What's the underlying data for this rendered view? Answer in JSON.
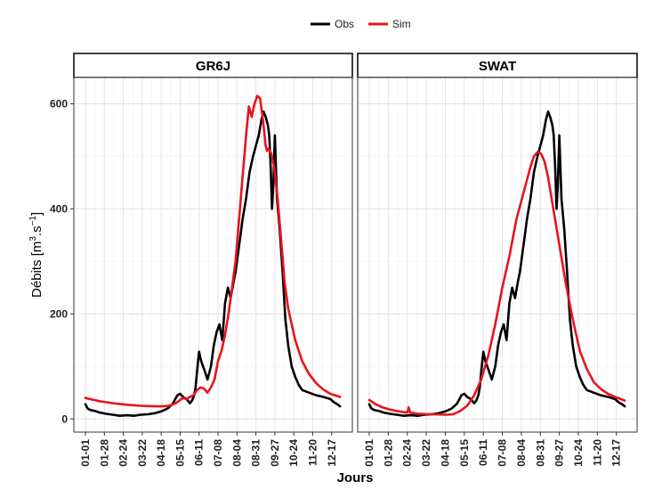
{
  "chart_data": {
    "type": "line",
    "legend": {
      "position": "top",
      "items": [
        {
          "name": "Obs",
          "color": "#000000"
        },
        {
          "name": "Sim",
          "color": "#e8141a"
        }
      ]
    },
    "xlabel": "Jours",
    "ylabel": "Débits [m³.s⁻¹]",
    "ylabel_parts": {
      "base": "Débits [m",
      "sup1": "3",
      "mid": ".s",
      "sup2": "−1",
      "end": "]"
    },
    "ylim": [
      -25,
      650
    ],
    "xlim": [
      1,
      365
    ],
    "grid": true,
    "yticks": [
      0,
      200,
      400,
      600
    ],
    "ytick_labels": [
      "0",
      "200",
      "400",
      "600"
    ],
    "xticks": [
      1,
      28,
      55,
      82,
      109,
      136,
      163,
      190,
      217,
      244,
      271,
      298,
      325,
      352
    ],
    "xtick_labels": [
      "01-01",
      "01-28",
      "02-24",
      "03-22",
      "04-18",
      "05-15",
      "06-11",
      "07-08",
      "08-04",
      "08-31",
      "09-27",
      "10-24",
      "11-20",
      "12-17"
    ],
    "panels": [
      {
        "title": "GR6J",
        "series": [
          {
            "name": "Obs",
            "color": "#000000",
            "x": [
              1,
              4,
              8,
              15,
              22,
              30,
              40,
              50,
              60,
              70,
              80,
              90,
              100,
              108,
              112,
              118,
              125,
              128,
              132,
              136,
              140,
              145,
              150,
              153,
              156,
              158,
              160,
              163,
              166,
              170,
              175,
              180,
              184,
              188,
              192,
              196,
              200,
              204,
              208,
              212,
              215,
              218,
              222,
              225,
              230,
              235,
              240,
              244,
              248,
              252,
              255,
              258,
              261,
              263,
              265,
              267,
              269,
              271,
              274,
              278,
              282,
              286,
              290,
              295,
              300,
              305,
              310,
              320,
              330,
              340,
              350,
              355,
              360,
              364
            ],
            "y": [
              28,
              20,
              17,
              15,
              12,
              10,
              8,
              6,
              7,
              6,
              8,
              9,
              11,
              14,
              16,
              20,
              28,
              35,
              45,
              48,
              42,
              38,
              30,
              35,
              45,
              60,
              90,
              128,
              110,
              95,
              75,
              100,
              140,
              165,
              180,
              150,
              220,
              250,
              230,
              260,
              280,
              310,
              350,
              380,
              420,
              470,
              500,
              520,
              540,
              570,
              585,
              575,
              560,
              540,
              480,
              400,
              450,
              540,
              420,
              360,
              280,
              190,
              140,
              100,
              80,
              65,
              55,
              50,
              45,
              42,
              38,
              32,
              28,
              24
            ]
          },
          {
            "name": "Sim",
            "color": "#e8141a",
            "x": [
              1,
              10,
              20,
              40,
              60,
              80,
              100,
              110,
              120,
              130,
              135,
              140,
              145,
              150,
              155,
              160,
              165,
              170,
              175,
              180,
              185,
              190,
              195,
              200,
              205,
              210,
              215,
              220,
              225,
              230,
              234,
              238,
              242,
              246,
              250,
              254,
              258,
              260,
              262,
              266,
              270,
              275,
              280,
              285,
              290,
              300,
              310,
              320,
              330,
              340,
              350,
              364
            ],
            "y": [
              40,
              37,
              34,
              30,
              27,
              25,
              24,
              24,
              25,
              30,
              35,
              40,
              38,
              42,
              45,
              55,
              60,
              58,
              50,
              60,
              75,
              110,
              130,
              160,
              200,
              250,
              300,
              380,
              460,
              540,
              595,
              575,
              600,
              615,
              610,
              570,
              520,
              510,
              515,
              505,
              480,
              420,
              340,
              260,
              210,
              150,
              110,
              85,
              68,
              56,
              48,
              42
            ]
          }
        ]
      },
      {
        "title": "SWAT",
        "series": [
          {
            "name": "Obs",
            "color": "#000000",
            "x": [
              1,
              4,
              8,
              15,
              22,
              30,
              40,
              50,
              60,
              70,
              80,
              90,
              100,
              108,
              112,
              118,
              125,
              128,
              132,
              136,
              140,
              145,
              150,
              153,
              156,
              158,
              160,
              163,
              166,
              170,
              175,
              180,
              184,
              188,
              192,
              196,
              200,
              204,
              208,
              212,
              215,
              218,
              222,
              225,
              230,
              235,
              240,
              244,
              248,
              252,
              255,
              258,
              261,
              263,
              265,
              267,
              269,
              271,
              274,
              278,
              282,
              286,
              290,
              295,
              300,
              305,
              310,
              320,
              330,
              340,
              350,
              355,
              360,
              364
            ],
            "y": [
              28,
              20,
              17,
              15,
              12,
              10,
              8,
              6,
              7,
              6,
              8,
              9,
              11,
              14,
              16,
              20,
              28,
              35,
              45,
              48,
              42,
              38,
              30,
              35,
              45,
              60,
              90,
              128,
              110,
              95,
              75,
              100,
              140,
              165,
              180,
              150,
              220,
              250,
              230,
              260,
              280,
              310,
              350,
              380,
              420,
              470,
              500,
              520,
              540,
              570,
              585,
              575,
              560,
              540,
              480,
              400,
              450,
              540,
              420,
              360,
              280,
              190,
              140,
              100,
              80,
              65,
              55,
              50,
              45,
              42,
              38,
              32,
              28,
              24
            ]
          },
          {
            "name": "Sim",
            "color": "#e8141a",
            "x": [
              1,
              10,
              20,
              30,
              40,
              55,
              57,
              59,
              70,
              90,
              110,
              120,
              130,
              140,
              150,
              160,
              170,
              180,
              190,
              200,
              210,
              220,
              230,
              235,
              240,
              245,
              250,
              255,
              260,
              270,
              280,
              290,
              300,
              310,
              320,
              330,
              340,
              350,
              364
            ],
            "y": [
              36,
              28,
              22,
              18,
              15,
              12,
              22,
              12,
              10,
              9,
              8,
              9,
              15,
              25,
              45,
              75,
              120,
              180,
              250,
              310,
              380,
              430,
              480,
              500,
              508,
              505,
              490,
              460,
              420,
              340,
              260,
              190,
              130,
              95,
              70,
              57,
              48,
              42,
              35
            ]
          }
        ]
      }
    ]
  }
}
